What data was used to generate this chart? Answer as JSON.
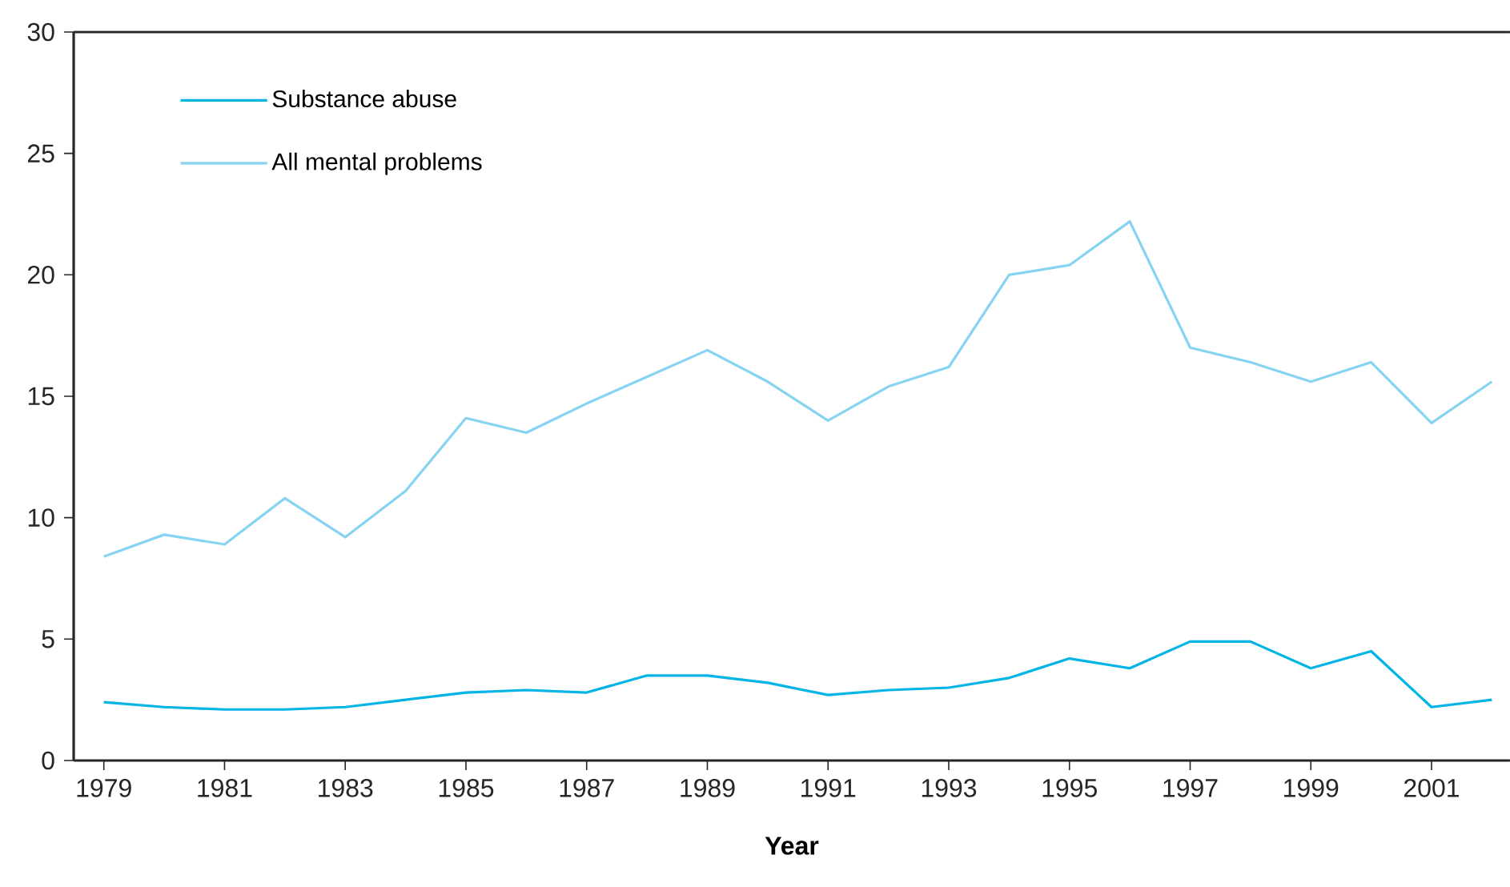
{
  "chart_data": {
    "type": "line",
    "xlabel": "Year",
    "x": [
      1979,
      1980,
      1981,
      1982,
      1983,
      1984,
      1985,
      1986,
      1987,
      1988,
      1989,
      1990,
      1991,
      1992,
      1993,
      1994,
      1995,
      1996,
      1997,
      1998,
      1999,
      2000,
      2001,
      2002
    ],
    "series": [
      {
        "name": "Substance abuse",
        "color": "#00b4e6",
        "values": [
          2.4,
          2.2,
          2.1,
          2.1,
          2.2,
          2.5,
          2.8,
          2.9,
          2.8,
          3.5,
          3.5,
          3.2,
          2.7,
          2.9,
          3.0,
          3.4,
          4.2,
          3.8,
          4.9,
          4.9,
          3.8,
          4.5,
          2.2,
          2.5
        ]
      },
      {
        "name": "All mental problems",
        "color": "#87d3f2",
        "values": [
          8.4,
          9.3,
          8.9,
          10.8,
          9.2,
          11.1,
          14.1,
          13.5,
          14.7,
          15.8,
          16.9,
          15.6,
          14.0,
          15.4,
          16.2,
          20.0,
          20.4,
          22.2,
          17.0,
          16.4,
          15.6,
          16.4,
          13.9,
          15.6
        ]
      }
    ],
    "xlim": [
      1978.5,
      2002.3
    ],
    "xticks": [
      1979,
      1981,
      1983,
      1985,
      1987,
      1989,
      1991,
      1993,
      1995,
      1997,
      1999,
      2001
    ],
    "ylim": [
      0,
      30
    ],
    "yticks": [
      0,
      5,
      10,
      15,
      20,
      25,
      30
    ],
    "grid": false,
    "legend": "top left",
    "marker": "none",
    "line_style": "solid"
  }
}
